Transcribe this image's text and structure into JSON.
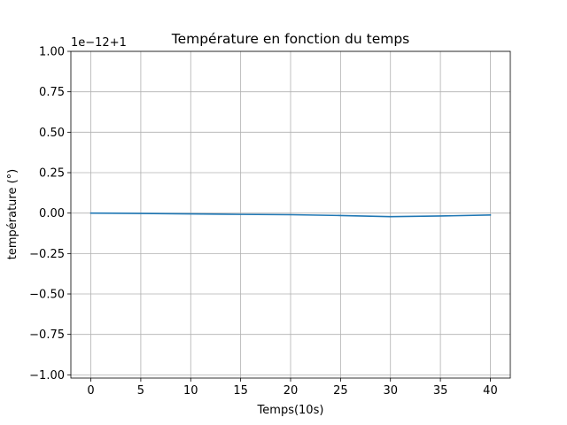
{
  "chart_data": {
    "type": "line",
    "title": "Température en fonction du temps",
    "xlabel": "Temps(10s)",
    "ylabel": "température (°)",
    "y_offset_text": "1e−12+1",
    "xlim": [
      -2,
      42
    ],
    "ylim": [
      -1.02,
      1.0
    ],
    "x_ticks": [
      0,
      5,
      10,
      15,
      20,
      25,
      30,
      35,
      40
    ],
    "x_tick_labels": [
      "0",
      "5",
      "10",
      "15",
      "20",
      "25",
      "30",
      "35",
      "40"
    ],
    "y_ticks": [
      -1.0,
      -0.75,
      -0.5,
      -0.25,
      0.0,
      0.25,
      0.5,
      0.75,
      1.0
    ],
    "y_tick_labels": [
      "−1.00",
      "−0.75",
      "−0.50",
      "−0.25",
      "0.00",
      "0.25",
      "0.50",
      "0.75",
      "1.00"
    ],
    "grid": true,
    "series": [
      {
        "color": "#1f77b4",
        "x": [
          0,
          5,
          10,
          15,
          20,
          25,
          30,
          35,
          40
        ],
        "y": [
          0.0,
          -0.002,
          -0.005,
          -0.008,
          -0.01,
          -0.015,
          -0.022,
          -0.018,
          -0.012
        ]
      }
    ]
  }
}
